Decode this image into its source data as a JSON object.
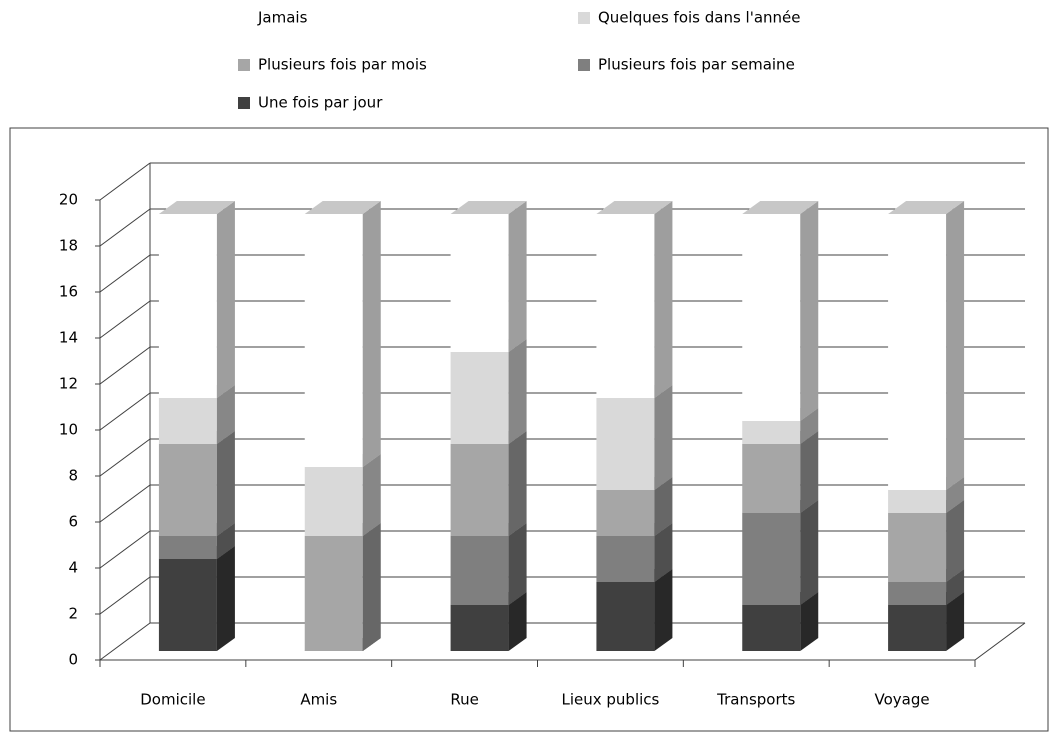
{
  "chart_data": {
    "type": "bar3d_stacked",
    "categories": [
      "Domicile",
      "Amis",
      "Rue",
      "Lieux publics",
      "Transports",
      "Voyage"
    ],
    "series": [
      {
        "name": "Jamais",
        "color": "#ffffff",
        "values": [
          8,
          11,
          6,
          8,
          9,
          12
        ]
      },
      {
        "name": "Quelques fois dans l'année",
        "color": "#d9d9d9",
        "values": [
          2,
          3,
          4,
          4,
          1,
          1
        ]
      },
      {
        "name": "Plusieurs fois par mois",
        "color": "#a6a6a6",
        "values": [
          4,
          5,
          4,
          2,
          3,
          3
        ]
      },
      {
        "name": "Plusieurs fois par semaine",
        "color": "#7f7f7f",
        "values": [
          1,
          0,
          3,
          2,
          4,
          1
        ]
      },
      {
        "name": "Une fois par jour",
        "color": "#404040",
        "values": [
          4,
          0,
          2,
          3,
          2,
          2
        ]
      }
    ],
    "ylim": [
      0,
      20
    ],
    "yticks": [
      0,
      2,
      4,
      6,
      8,
      10,
      12,
      14,
      16,
      18,
      20
    ],
    "grid": true
  }
}
